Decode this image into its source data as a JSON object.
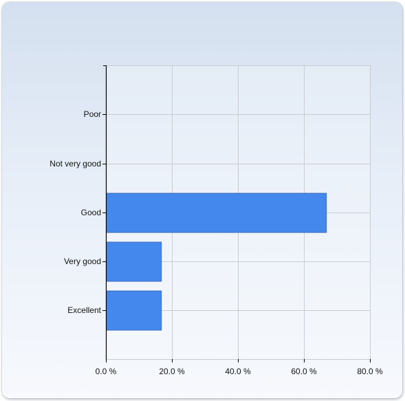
{
  "chart_data": {
    "type": "bar",
    "orientation": "horizontal",
    "categories": [
      "Poor",
      "Not very good",
      "Good",
      "Very good",
      "Excellent"
    ],
    "values": [
      0,
      0,
      66.7,
      16.7,
      16.7
    ],
    "xlim": [
      0,
      80
    ],
    "x_ticks": [
      "0.0 %",
      "20.0 %",
      "40.0 %",
      "60.0 %",
      "80.0 %"
    ],
    "title": "",
    "xlabel": "",
    "ylabel": "",
    "grid": true,
    "bar_color": "#4488ee",
    "bar_border_color": "#3a6bb5"
  }
}
